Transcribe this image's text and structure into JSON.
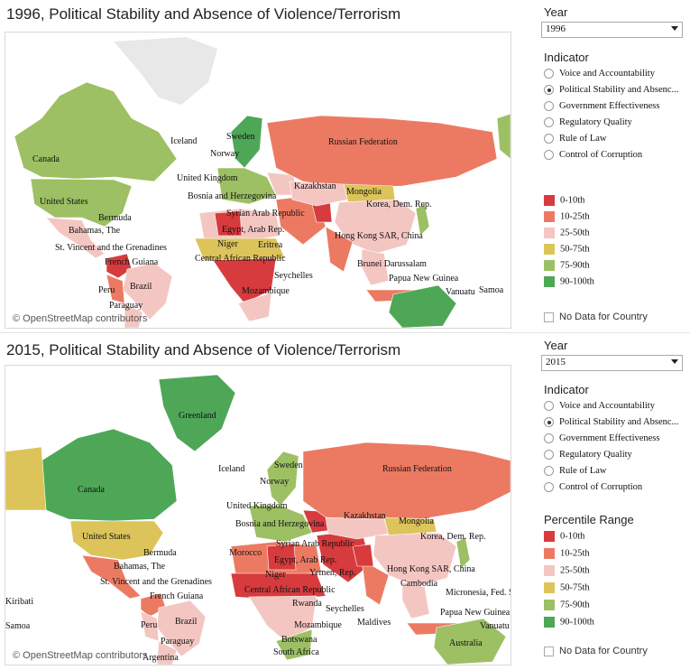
{
  "colors": {
    "p0_10": "#d73b3e",
    "p10_25": "#ec7a63",
    "p25_50": "#f4c6c2",
    "p50_75": "#dcc45a",
    "p75_90": "#9cc063",
    "p90_100": "#4ea757",
    "land_nodata": "#e2e2e2"
  },
  "panels": [
    {
      "title": "1996, Political Stability and Absence of Violence/Terrorism",
      "credit": "© OpenStreetMap contributors",
      "year_label": "Year",
      "year_value": "1996",
      "indicator_label": "Indicator",
      "indicators": [
        "Voice and Accountability",
        "Political Stability and Absenc...",
        "Government Effectiveness",
        "Regulatory Quality",
        "Rule of Law",
        "Control of Corruption"
      ],
      "selected_indicator": 1,
      "legend_title": "",
      "legend": [
        "0-10th",
        "10-25th",
        "25-50th",
        "50-75th",
        "75-90th",
        "90-100th"
      ],
      "no_data": "No Data for Country",
      "map_labels": [
        "Canada",
        "United States",
        "Bermuda",
        "Bahamas, The",
        "St. Vincent and the Grenadines",
        "French Guiana",
        "Peru",
        "Brazil",
        "Paraguay",
        "Iceland",
        "Norway",
        "Sweden",
        "United Kingdom",
        "Bosnia and Herzegovina",
        "Syrian Arab Republic",
        "Egypt, Arab Rep.",
        "Niger",
        "Eritrea",
        "Central African Republic",
        "Seychelles",
        "Mozambique",
        "Russian Federation",
        "Kazakhstan",
        "Mongolia",
        "Korea, Dem. Rep.",
        "Hong Kong SAR, China",
        "Brunei Darussalam",
        "Papua New Guinea",
        "Vanuatu",
        "Samoa"
      ]
    },
    {
      "title": "2015, Political Stability and Absence of Violence/Terrorism",
      "credit": "© OpenStreetMap contributors",
      "year_label": "Year",
      "year_value": "2015",
      "indicator_label": "Indicator",
      "indicators": [
        "Voice and Accountability",
        "Political Stability and Absenc...",
        "Government Effectiveness",
        "Regulatory Quality",
        "Rule of Law",
        "Control of Corruption"
      ],
      "selected_indicator": 1,
      "legend_title": "Percentile Range",
      "legend": [
        "0-10th",
        "10-25th",
        "25-50th",
        "50-75th",
        "75-90th",
        "90-100th"
      ],
      "no_data": "No Data for Country",
      "map_labels": [
        "Greenland",
        "Canada",
        "United States",
        "Bermuda",
        "Bahamas, The",
        "St. Vincent and the Grenadines",
        "French Guiana",
        "Peru",
        "Brazil",
        "Paraguay",
        "Argentina",
        "Kiribati",
        "Samoa",
        "Iceland",
        "Norway",
        "Sweden",
        "United Kingdom",
        "Bosnia and Herzegovina",
        "Syrian Arab Republic",
        "Morocco",
        "Egypt, Arab Rep.",
        "Yemen, Rep.",
        "Niger",
        "Central African Republic",
        "Rwanda",
        "Seychelles",
        "Maldives",
        "Mozambique",
        "Botswana",
        "South Africa",
        "Russian Federation",
        "Kazakhstan",
        "Mongolia",
        "Korea, Dem. Rep.",
        "Hong Kong SAR, China",
        "Cambodia",
        "Micronesia, Fed. Sts.",
        "Papua New Guinea",
        "Vanuatu",
        "Australia"
      ]
    }
  ]
}
